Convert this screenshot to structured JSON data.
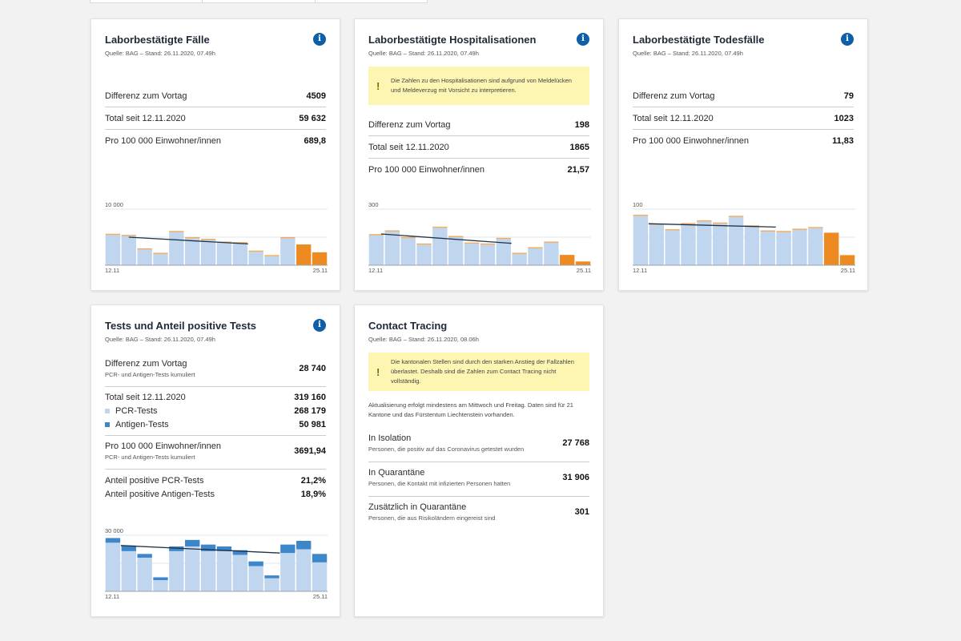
{
  "colors": {
    "pcr": "#bfd6ee",
    "antigen": "#3c86c9",
    "orange": "#ed8b22",
    "trend": "#1f3345",
    "info": "#0f5ea8",
    "warn_bg": "#fcf6b2"
  },
  "cases": {
    "title": "Laborbestätigte Fälle",
    "source": "Quelle: BAG – Stand: 26.11.2020, 07.49h",
    "rows": [
      {
        "label": "Differenz zum Vortag",
        "value": "4509"
      },
      {
        "label": "Total seit 12.11.2020",
        "value": "59 632"
      },
      {
        "label": "Pro 100 000 Einwohner/innen",
        "value": "689,8"
      }
    ]
  },
  "hosp": {
    "title": "Laborbestätigte Hospitalisationen",
    "source": "Quelle: BAG – Stand: 26.11.2020, 07.49h",
    "warning": "Die Zahlen zu den Hospitalisationen sind aufgrund von Meldelücken und Meldeverzug mit Vorsicht zu interpretieren.",
    "rows": [
      {
        "label": "Differenz zum Vortag",
        "value": "198"
      },
      {
        "label": "Total seit 12.11.2020",
        "value": "1865"
      },
      {
        "label": "Pro 100 000 Einwohner/innen",
        "value": "21,57"
      }
    ]
  },
  "deaths": {
    "title": "Laborbestätigte Todesfälle",
    "source": "Quelle: BAG – Stand: 26.11.2020, 07.49h",
    "rows": [
      {
        "label": "Differenz zum Vortag",
        "value": "79"
      },
      {
        "label": "Total seit 12.11.2020",
        "value": "1023"
      },
      {
        "label": "Pro 100 000 Einwohner/innen",
        "value": "11,83"
      }
    ]
  },
  "tests": {
    "title": "Tests und Anteil positive Tests",
    "source": "Quelle: BAG – Stand: 26.11.2020, 07.49h",
    "diff_label": "Differenz zum Vortag",
    "diff_sub": "PCR- und Antigen-Tests kumuliert",
    "diff_value": "28 740",
    "total_label": "Total seit 12.11.2020",
    "total_value": "319 160",
    "pcr_label": "PCR-Tests",
    "pcr_value": "268 179",
    "antigen_label": "Antigen-Tests",
    "antigen_value": "50 981",
    "per_label": "Pro 100 000 Einwohner/innen",
    "per_sub": "PCR- und Antigen-Tests kumuliert",
    "per_value": "3691,94",
    "pos_pcr_label": "Anteil positive PCR-Tests",
    "pos_pcr_value": "21,2%",
    "pos_ag_label": "Anteil positive Antigen-Tests",
    "pos_ag_value": "18,9%"
  },
  "tracing": {
    "title": "Contact Tracing",
    "source": "Quelle: BAG – Stand: 26.11.2020, 08.06h",
    "warning": "Die kantonalen Stellen sind durch den starken Anstieg der Fallzahlen überlastet. Deshalb sind die Zahlen zum Contact Tracing nicht vollständig.",
    "info": "Aktualisierung erfolgt mindestens am Mittwoch und Freitag. Daten sind für 21 Kantone und das Fürstentum Liechtenstein vorhanden.",
    "rows": [
      {
        "label": "In Isolation",
        "sub": "Personen, die positiv auf das Coronavirus getestet wurden",
        "value": "27 768"
      },
      {
        "label": "In Quarantäne",
        "sub": "Personen, die Kontakt mit infizierten Personen hatten",
        "value": "31 906"
      },
      {
        "label": "Zusätzlich in Quarantäne",
        "sub": "Personen, die aus Risikoländern eingereist sind",
        "value": "301"
      }
    ]
  },
  "chart_data": [
    {
      "type": "bar",
      "name": "cases",
      "ymax": 10000,
      "ymax_label": "10 000",
      "x_start": "12.11",
      "x_end": "25.11",
      "values": [
        5400,
        5200,
        2800,
        2000,
        5900,
        4800,
        4500,
        4000,
        3900,
        2400,
        1600,
        4800,
        3700,
        2300
      ],
      "incomplete": [
        0,
        0,
        0,
        0,
        0,
        0,
        0,
        0,
        0,
        0,
        0,
        0,
        1,
        1
      ],
      "trend_x": [
        1,
        8.5
      ],
      "trend_y": [
        5000,
        3800
      ]
    },
    {
      "type": "bar",
      "name": "hospitalisations",
      "ymax": 300,
      "ymax_label": "300",
      "x_start": "12.11",
      "x_end": "25.11",
      "values": [
        160,
        180,
        145,
        110,
        200,
        150,
        115,
        110,
        140,
        60,
        90,
        120,
        55,
        20
      ],
      "incomplete": [
        0,
        0,
        0,
        0,
        0,
        0,
        0,
        0,
        0,
        0,
        0,
        0,
        1,
        1
      ],
      "trend_x": [
        0.3,
        8.5
      ],
      "trend_y": [
        167,
        117
      ]
    },
    {
      "type": "bar",
      "name": "deaths",
      "ymax": 100,
      "ymax_label": "100",
      "x_start": "12.11",
      "x_end": "25.11",
      "values": [
        88,
        72,
        62,
        73,
        78,
        74,
        86,
        69,
        60,
        59,
        63,
        66,
        58,
        18
      ],
      "incomplete": [
        0,
        0,
        0,
        0,
        0,
        0,
        0,
        0,
        0,
        0,
        0,
        0,
        1,
        1
      ],
      "trend_x": [
        0.5,
        8.5
      ],
      "trend_y": [
        74,
        68
      ]
    },
    {
      "type": "bar",
      "name": "tests",
      "ymax": 30000,
      "ymax_label": "30 000",
      "x_start": "12.11",
      "x_end": "25.11",
      "pcr": [
        26000,
        21500,
        18000,
        6000,
        21500,
        24000,
        21500,
        21500,
        19500,
        13500,
        7000,
        20500,
        22500,
        15500
      ],
      "antigen": [
        2500,
        3000,
        2000,
        1500,
        2500,
        3500,
        3500,
        2500,
        2500,
        2500,
        1500,
        4500,
        4500,
        4500
      ],
      "trend_x": [
        0.5,
        10.5
      ],
      "trend_y": [
        24500,
        20500
      ]
    }
  ]
}
